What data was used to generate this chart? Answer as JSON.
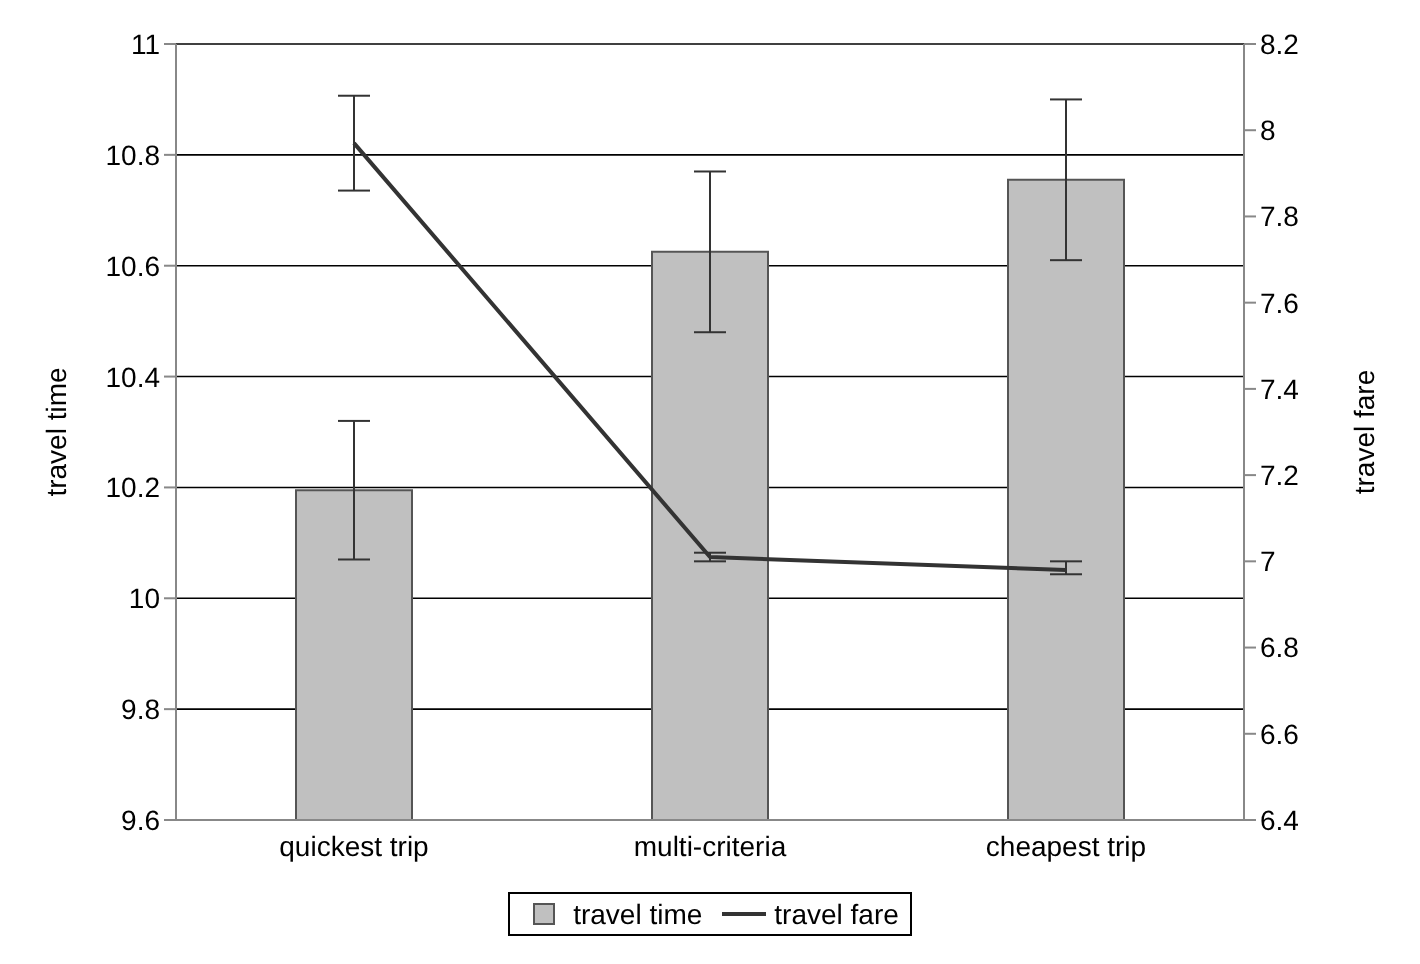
{
  "chart_data": {
    "type": "bar",
    "categories": [
      "quickest trip",
      "multi-criteria",
      "cheapest trip"
    ],
    "series": [
      {
        "name": "travel time",
        "color": "#c0c0c0",
        "values": [
          10.195,
          10.625,
          10.755
        ],
        "errors": [
          [
            10.07,
            10.32
          ],
          [
            10.48,
            10.77
          ],
          [
            10.61,
            10.9
          ]
        ]
      },
      {
        "name": "travel fare",
        "type": "line",
        "axis": "y2",
        "color": "#333333",
        "values": [
          7.97,
          7.01,
          6.98
        ],
        "errors": [
          [
            7.86,
            8.08
          ],
          [
            7.0,
            7.02
          ],
          [
            6.97,
            7.0
          ]
        ]
      }
    ],
    "ylabel": "travel time",
    "y2label": "travel fare",
    "ylim": [
      9.6,
      11
    ],
    "yticks": [
      9.6,
      9.8,
      10,
      10.2,
      10.4,
      10.6,
      10.8,
      11
    ],
    "y2lim": [
      6.4,
      8.2
    ],
    "y2ticks": [
      6.4,
      6.6,
      6.8,
      7,
      7.2,
      7.4,
      7.6,
      7.8,
      8,
      8.2
    ],
    "grid": "y",
    "legend": "bottom",
    "marker": "none"
  }
}
